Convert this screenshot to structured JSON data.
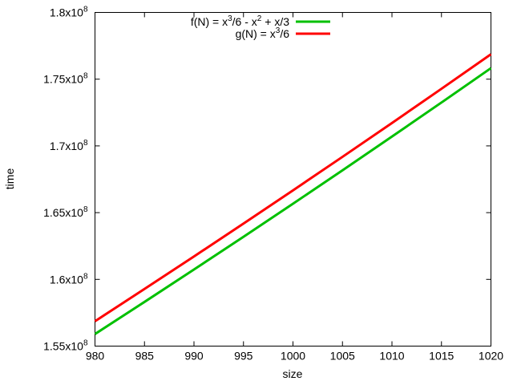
{
  "chart_data": {
    "type": "line",
    "title": "",
    "xlabel": "size",
    "ylabel": "time",
    "xlim": [
      980,
      1020
    ],
    "ylim": [
      155000000,
      180000000
    ],
    "grid": false,
    "legend_placement": "top-center",
    "x_ticks": [
      "980",
      "985",
      "990",
      "995",
      "1000",
      "1005",
      "1010",
      "1015",
      "1020"
    ],
    "x_tick_values": [
      980,
      985,
      990,
      995,
      1000,
      1005,
      1010,
      1015,
      1020
    ],
    "y_ticks": [
      {
        "value": 155000000,
        "mantissa": "1.55x10",
        "exp": "8"
      },
      {
        "value": 160000000,
        "mantissa": "1.6x10",
        "exp": "8"
      },
      {
        "value": 165000000,
        "mantissa": "1.65x10",
        "exp": "8"
      },
      {
        "value": 170000000,
        "mantissa": "1.7x10",
        "exp": "8"
      },
      {
        "value": 175000000,
        "mantissa": "1.75x10",
        "exp": "8"
      },
      {
        "value": 180000000,
        "mantissa": "1.8x10",
        "exp": "8"
      }
    ],
    "x": [
      980,
      985,
      990,
      995,
      1000,
      1005,
      1010,
      1015,
      1020
    ],
    "series": [
      {
        "name": "f(N) = x^3/6 - x^2 + x/3",
        "color": "#00c000",
        "legend_parts": [
          "f(N) = x",
          "3",
          "/6 - x",
          "2",
          " + x/3"
        ],
        "values": [
          155905260,
          158308708,
          160736730,
          163189453,
          165667000,
          168169498,
          170697070,
          173249843,
          175827940
        ]
      },
      {
        "name": "g(N) = x^3/6",
        "color": "#ff0000",
        "legend_parts": [
          "g(N) = x",
          "3",
          "/6"
        ],
        "values": [
          156865333,
          159278604,
          161716500,
          164179146,
          166666667,
          169179188,
          171716833,
          174279729,
          176868000
        ]
      }
    ]
  }
}
